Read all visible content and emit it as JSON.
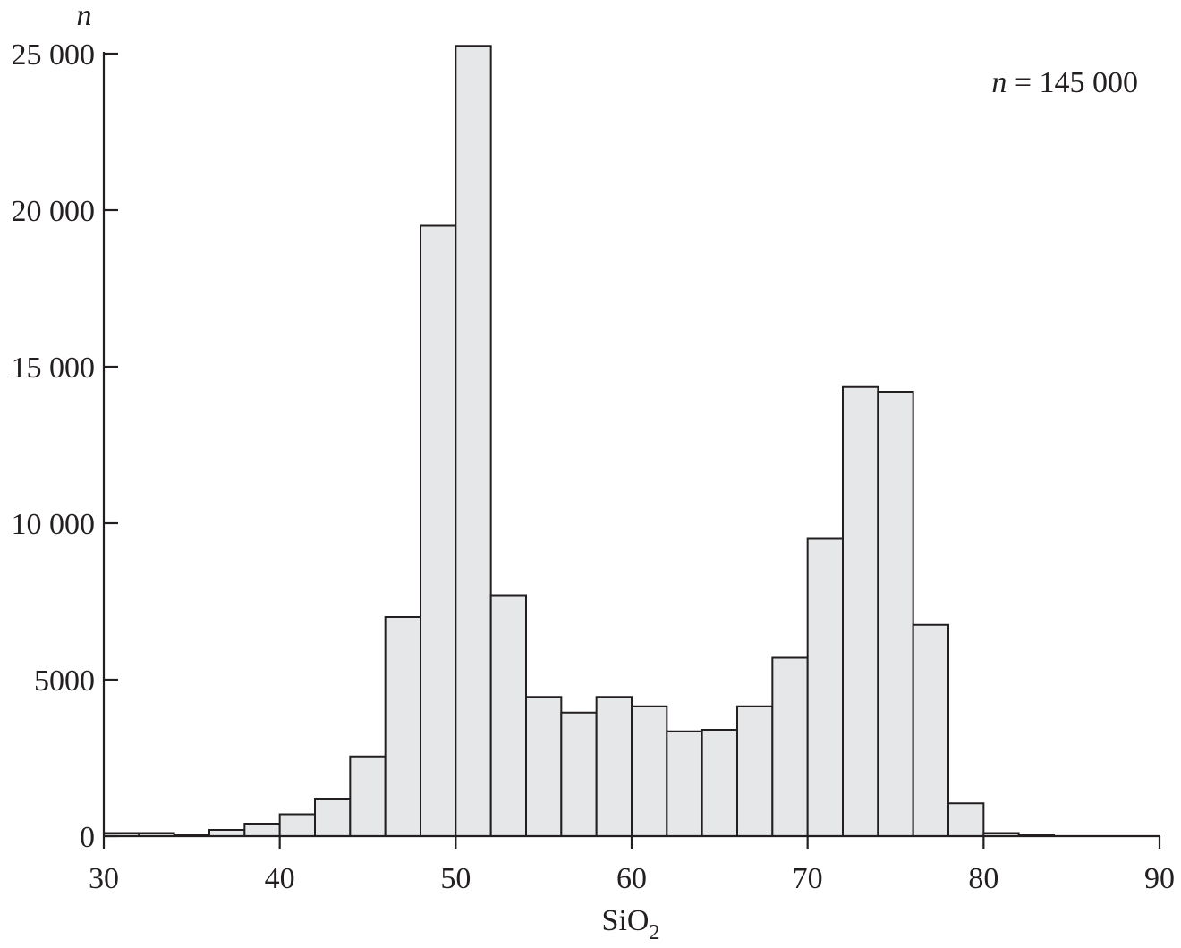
{
  "chart_data": {
    "type": "bar",
    "title": "",
    "xlabel": "SiO",
    "xlabel_subscript": "2",
    "ylabel": "n",
    "annotation": {
      "prefix": "n",
      "text": " = 145 000"
    },
    "xlim": [
      30,
      90
    ],
    "ylim": [
      0,
      25000
    ],
    "bin_width": 2,
    "x_ticks": [
      30,
      40,
      50,
      60,
      70,
      80,
      90
    ],
    "x_tick_labels": [
      "30",
      "40",
      "50",
      "60",
      "70",
      "80",
      "90"
    ],
    "y_ticks": [
      0,
      5000,
      10000,
      15000,
      20000,
      25000
    ],
    "y_tick_labels": [
      "0",
      "5000",
      "10 000",
      "15 000",
      "20 000",
      "25 000"
    ],
    "bin_starts": [
      30,
      32,
      34,
      36,
      38,
      40,
      42,
      44,
      46,
      48,
      50,
      52,
      54,
      56,
      58,
      60,
      62,
      64,
      66,
      68,
      70,
      72,
      74,
      76,
      78,
      80,
      82,
      84,
      86,
      88
    ],
    "values": [
      100,
      100,
      50,
      200,
      400,
      700,
      1200,
      2550,
      7000,
      19500,
      25250,
      7700,
      4450,
      3950,
      4450,
      4150,
      3350,
      3400,
      4150,
      5700,
      9500,
      14350,
      14200,
      6750,
      1050,
      100,
      50,
      0,
      0,
      0
    ],
    "grid": false,
    "legend": "none",
    "colors": {
      "bar_fill": "#e6e7e8",
      "stroke": "#231f20"
    }
  }
}
